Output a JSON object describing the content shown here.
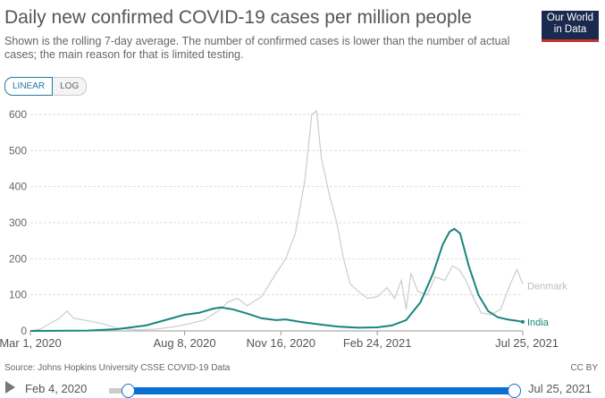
{
  "header": {
    "title": "Daily new confirmed COVID-19 cases per million people",
    "subtitle": "Shown is the rolling 7-day average. The number of confirmed cases is lower than the number of actual cases; the main reason for that is limited testing.",
    "logo": "Our World in Data"
  },
  "toggle": {
    "linear": "LINEAR",
    "log": "LOG"
  },
  "footer": {
    "source": "Source: Johns Hopkins University CSSE COVID-19 Data",
    "license": "CC BY"
  },
  "timeline": {
    "start": "Feb 4, 2020",
    "end": "Jul 25, 2021"
  },
  "chart_data": {
    "type": "line",
    "title": "Daily new confirmed COVID-19 cases per million people",
    "ylim": [
      0,
      600
    ],
    "yticks": [
      0,
      100,
      200,
      300,
      400,
      500,
      600
    ],
    "xticks": [
      {
        "day": 0,
        "label": "Mar 1, 2020"
      },
      {
        "day": 160,
        "label": "Aug 8, 2020"
      },
      {
        "day": 260,
        "label": "Nov 16, 2020"
      },
      {
        "day": 360,
        "label": "Feb 24, 2021"
      },
      {
        "day": 511,
        "label": "Jul 25, 2021"
      }
    ],
    "x_unit": "days since Mar 1, 2020",
    "series": [
      {
        "name": "Denmark",
        "color": "#cccccc",
        "points": [
          [
            0,
            0
          ],
          [
            10,
            5
          ],
          [
            20,
            20
          ],
          [
            30,
            35
          ],
          [
            38,
            55
          ],
          [
            45,
            35
          ],
          [
            60,
            28
          ],
          [
            75,
            20
          ],
          [
            90,
            8
          ],
          [
            110,
            3
          ],
          [
            130,
            5
          ],
          [
            150,
            12
          ],
          [
            165,
            20
          ],
          [
            180,
            30
          ],
          [
            195,
            55
          ],
          [
            205,
            80
          ],
          [
            215,
            90
          ],
          [
            225,
            70
          ],
          [
            240,
            95
          ],
          [
            255,
            160
          ],
          [
            265,
            200
          ],
          [
            275,
            270
          ],
          [
            285,
            420
          ],
          [
            292,
            600
          ],
          [
            297,
            610
          ],
          [
            302,
            480
          ],
          [
            310,
            380
          ],
          [
            318,
            300
          ],
          [
            325,
            200
          ],
          [
            332,
            130
          ],
          [
            340,
            110
          ],
          [
            350,
            90
          ],
          [
            360,
            95
          ],
          [
            370,
            120
          ],
          [
            378,
            90
          ],
          [
            385,
            140
          ],
          [
            390,
            60
          ],
          [
            395,
            160
          ],
          [
            402,
            110
          ],
          [
            412,
            100
          ],
          [
            420,
            150
          ],
          [
            430,
            140
          ],
          [
            438,
            180
          ],
          [
            445,
            170
          ],
          [
            452,
            140
          ],
          [
            460,
            90
          ],
          [
            468,
            50
          ],
          [
            478,
            45
          ],
          [
            488,
            60
          ],
          [
            498,
            130
          ],
          [
            505,
            170
          ],
          [
            511,
            130
          ]
        ]
      },
      {
        "name": "India",
        "color": "#18857f",
        "points": [
          [
            0,
            0
          ],
          [
            60,
            1
          ],
          [
            90,
            5
          ],
          [
            120,
            15
          ],
          [
            140,
            30
          ],
          [
            160,
            45
          ],
          [
            175,
            50
          ],
          [
            190,
            62
          ],
          [
            198,
            65
          ],
          [
            210,
            60
          ],
          [
            225,
            48
          ],
          [
            240,
            35
          ],
          [
            255,
            30
          ],
          [
            265,
            32
          ],
          [
            280,
            25
          ],
          [
            300,
            18
          ],
          [
            320,
            12
          ],
          [
            340,
            9
          ],
          [
            360,
            10
          ],
          [
            375,
            15
          ],
          [
            390,
            30
          ],
          [
            405,
            80
          ],
          [
            418,
            160
          ],
          [
            428,
            240
          ],
          [
            435,
            275
          ],
          [
            440,
            283
          ],
          [
            446,
            270
          ],
          [
            455,
            180
          ],
          [
            465,
            100
          ],
          [
            475,
            55
          ],
          [
            485,
            38
          ],
          [
            495,
            32
          ],
          [
            505,
            28
          ],
          [
            511,
            25
          ]
        ]
      }
    ]
  }
}
